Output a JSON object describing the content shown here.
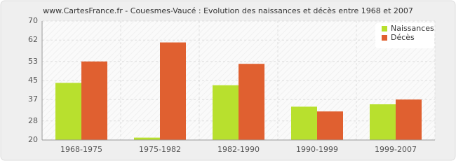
{
  "chart_data": {
    "type": "bar",
    "title": "www.CartesFrance.fr - Couesmes-Vaucé : Evolution des naissances et décès entre 1968 et 2007",
    "categories": [
      "1968-1975",
      "1975-1982",
      "1982-1990",
      "1990-1999",
      "1999-2007"
    ],
    "series": [
      {
        "name": "Naissances",
        "color": "#b8e02e",
        "values": [
          44,
          21,
          43,
          34,
          35
        ]
      },
      {
        "name": "Décès",
        "color": "#e06030",
        "values": [
          53,
          61,
          52,
          32,
          37
        ]
      }
    ],
    "ylim": [
      20,
      70
    ],
    "yticks": [
      20,
      28,
      37,
      45,
      53,
      62,
      70
    ],
    "grid": true,
    "legend": "top-right"
  }
}
